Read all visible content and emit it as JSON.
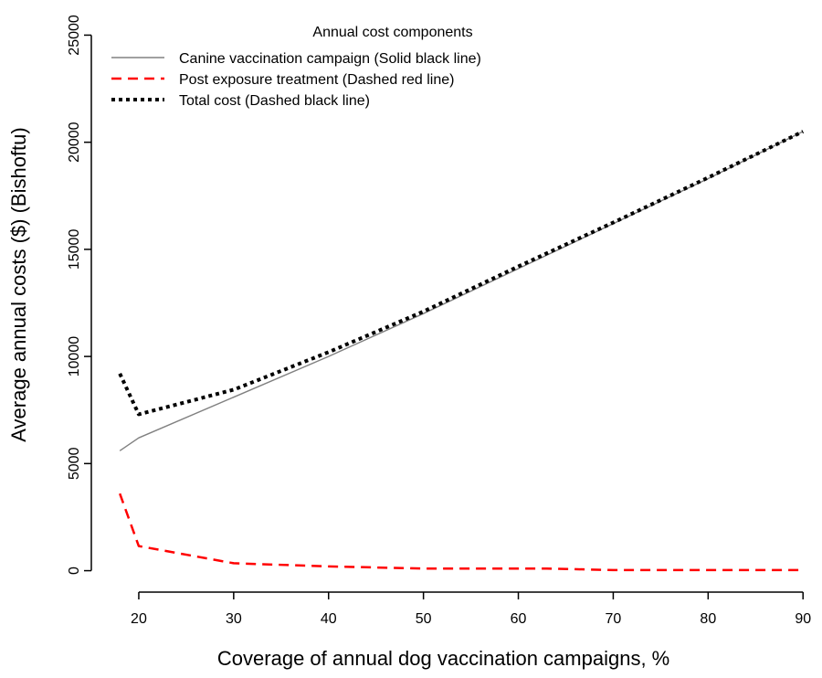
{
  "chart_data": {
    "type": "line",
    "title": "",
    "xlabel": "Coverage of annual dog vaccination campaigns, %",
    "ylabel": "Average annual costs ($) (Bishoftu)",
    "xlim": [
      15,
      92
    ],
    "ylim": [
      -1000,
      26000
    ],
    "xticks": [
      20,
      30,
      40,
      50,
      60,
      70,
      80,
      90
    ],
    "yticks": [
      0,
      5000,
      10000,
      15000,
      20000,
      25000
    ],
    "grid": false,
    "legend": {
      "title": "Annual cost components",
      "placement": "top-left"
    },
    "series": [
      {
        "name": "Canine vaccination campaign (Solid black line)",
        "color": "#808080",
        "style": "solid",
        "x": [
          18,
          20,
          30,
          40,
          50,
          60,
          70,
          80,
          90
        ],
        "values": [
          5600,
          6200,
          8100,
          10000,
          12000,
          14100,
          16200,
          18300,
          20500
        ]
      },
      {
        "name": "Post exposure treatment (Dashed red line)",
        "color": "#ff0000",
        "style": "dashed",
        "x": [
          18,
          20,
          30,
          40,
          50,
          60,
          63,
          70,
          80,
          90
        ],
        "values": [
          3600,
          1150,
          350,
          200,
          100,
          100,
          100,
          30,
          30,
          30
        ]
      },
      {
        "name": "Total cost (Dashed black line)",
        "color": "#000000",
        "style": "dotted",
        "x": [
          18,
          20,
          30,
          40,
          50,
          60,
          70,
          80,
          90
        ],
        "values": [
          9200,
          7300,
          8450,
          10200,
          12100,
          14200,
          16250,
          18350,
          20500
        ]
      }
    ]
  }
}
